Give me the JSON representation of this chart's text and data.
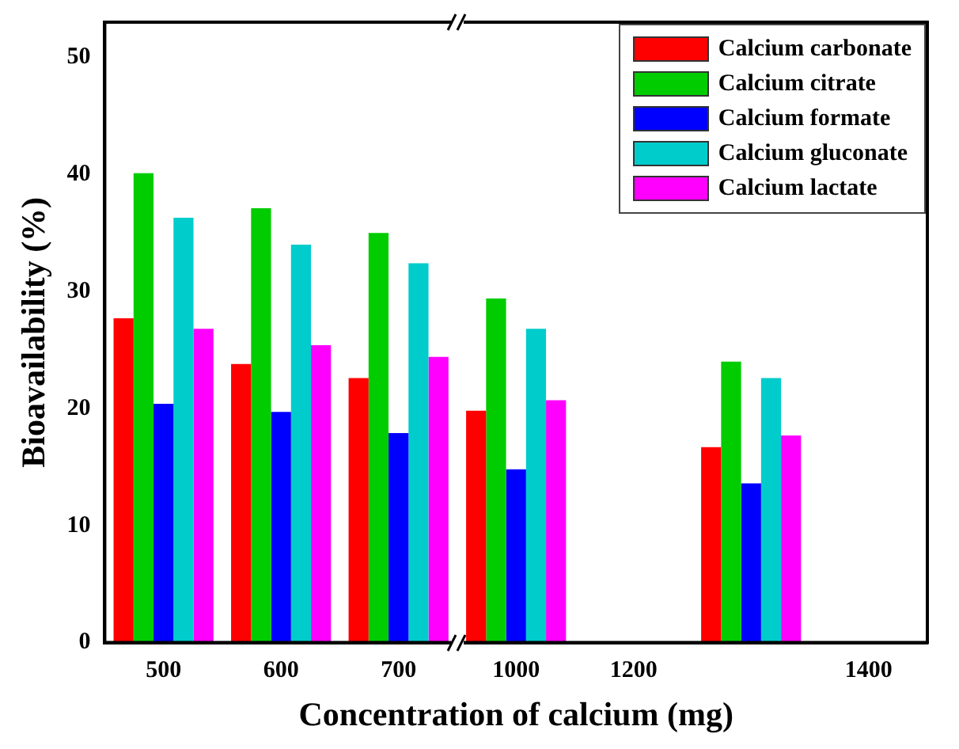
{
  "chart_data": {
    "type": "bar",
    "xlabel": "Concentration of calcium (mg)",
    "ylabel": "Bioavailability (%)",
    "categories": [
      "500",
      "600",
      "700",
      "1000",
      "1200",
      null,
      "1400"
    ],
    "series": [
      {
        "name": "Calcium carbonate",
        "color": "#ff0000",
        "values": [
          27.7,
          23.8,
          22.6,
          19.8,
          null,
          16.7,
          null
        ]
      },
      {
        "name": "Calcium citrate",
        "color": "#00cc00",
        "values": [
          40.1,
          37.1,
          35.0,
          29.4,
          null,
          24.0,
          null
        ]
      },
      {
        "name": "Calcium formate",
        "color": "#0000ff",
        "values": [
          20.4,
          19.7,
          17.9,
          14.8,
          null,
          13.6,
          null
        ]
      },
      {
        "name": "Calcium gluconate",
        "color": "#00cccc",
        "values": [
          36.3,
          34.0,
          32.4,
          26.8,
          null,
          22.6,
          null
        ]
      },
      {
        "name": "Calcium lactate",
        "color": "#ff00ff",
        "values": [
          26.8,
          25.4,
          24.4,
          20.7,
          null,
          17.7,
          null
        ]
      }
    ],
    "ylim": [
      0,
      53
    ],
    "yticks": [
      0,
      10,
      20,
      30,
      40,
      50
    ],
    "grid": false,
    "legend": "top right"
  }
}
